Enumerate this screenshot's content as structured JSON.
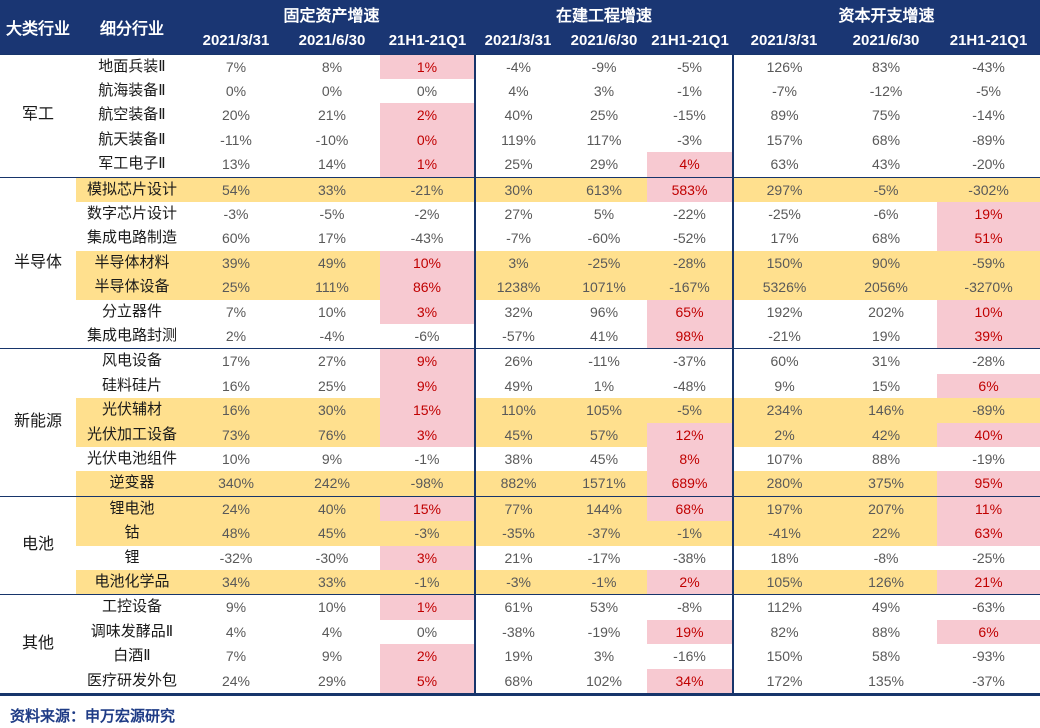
{
  "colors": {
    "header_bg": "#1A3673",
    "divider": "#17356B",
    "row_yellow": "#FFE08E",
    "cell_pink": "#F7C9D1",
    "text_red": "#C00000",
    "text_value": "#595959",
    "text_black": "#1A1A1A",
    "footer_text": "#1F3C86"
  },
  "chart_data": {
    "type": "table",
    "corner": {
      "group_col": "大类行业",
      "name_col": "细分行业"
    },
    "metric_groups": [
      {
        "label": "固定资产增速",
        "sub_columns": [
          "2021/3/31",
          "2021/6/30",
          "21H1-21Q1"
        ]
      },
      {
        "label": "在建工程增速",
        "sub_columns": [
          "2021/3/31",
          "2021/6/30",
          "21H1-21Q1"
        ]
      },
      {
        "label": "资本开支增速",
        "sub_columns": [
          "2021/3/31",
          "2021/6/30",
          "21H1-21Q1"
        ]
      }
    ],
    "row_groups": [
      {
        "name": "军工",
        "rows": [
          {
            "name": "地面兵装Ⅱ",
            "yellow": false,
            "values": [
              "7%",
              "8%",
              "1%",
              "-4%",
              "-9%",
              "-5%",
              "126%",
              "83%",
              "-43%"
            ],
            "pink_cols": [
              2
            ]
          },
          {
            "name": "航海装备Ⅱ",
            "yellow": false,
            "values": [
              "0%",
              "0%",
              "0%",
              "4%",
              "3%",
              "-1%",
              "-7%",
              "-12%",
              "-5%"
            ],
            "pink_cols": []
          },
          {
            "name": "航空装备Ⅱ",
            "yellow": false,
            "values": [
              "20%",
              "21%",
              "2%",
              "40%",
              "25%",
              "-15%",
              "89%",
              "75%",
              "-14%"
            ],
            "pink_cols": [
              2
            ]
          },
          {
            "name": "航天装备Ⅱ",
            "yellow": false,
            "values": [
              "-11%",
              "-10%",
              "0%",
              "119%",
              "117%",
              "-3%",
              "157%",
              "68%",
              "-89%"
            ],
            "pink_cols": [
              2
            ]
          },
          {
            "name": "军工电子Ⅱ",
            "yellow": false,
            "values": [
              "13%",
              "14%",
              "1%",
              "25%",
              "29%",
              "4%",
              "63%",
              "43%",
              "-20%"
            ],
            "pink_cols": [
              2,
              5
            ]
          }
        ]
      },
      {
        "name": "半导体",
        "rows": [
          {
            "name": "模拟芯片设计",
            "yellow": true,
            "values": [
              "54%",
              "33%",
              "-21%",
              "30%",
              "613%",
              "583%",
              "297%",
              "-5%",
              "-302%"
            ],
            "pink_cols": [
              5
            ]
          },
          {
            "name": "数字芯片设计",
            "yellow": false,
            "values": [
              "-3%",
              "-5%",
              "-2%",
              "27%",
              "5%",
              "-22%",
              "-25%",
              "-6%",
              "19%"
            ],
            "pink_cols": [
              8
            ]
          },
          {
            "name": "集成电路制造",
            "yellow": false,
            "values": [
              "60%",
              "17%",
              "-43%",
              "-7%",
              "-60%",
              "-52%",
              "17%",
              "68%",
              "51%"
            ],
            "pink_cols": [
              8
            ]
          },
          {
            "name": "半导体材料",
            "yellow": true,
            "values": [
              "39%",
              "49%",
              "10%",
              "3%",
              "-25%",
              "-28%",
              "150%",
              "90%",
              "-59%"
            ],
            "pink_cols": [
              2
            ]
          },
          {
            "name": "半导体设备",
            "yellow": true,
            "values": [
              "25%",
              "111%",
              "86%",
              "1238%",
              "1071%",
              "-167%",
              "5326%",
              "2056%",
              "-3270%"
            ],
            "pink_cols": [
              2
            ]
          },
          {
            "name": "分立器件",
            "yellow": false,
            "values": [
              "7%",
              "10%",
              "3%",
              "32%",
              "96%",
              "65%",
              "192%",
              "202%",
              "10%"
            ],
            "pink_cols": [
              2,
              5,
              8
            ]
          },
          {
            "name": "集成电路封测",
            "yellow": false,
            "values": [
              "2%",
              "-4%",
              "-6%",
              "-57%",
              "41%",
              "98%",
              "-21%",
              "19%",
              "39%"
            ],
            "pink_cols": [
              5,
              8
            ]
          }
        ]
      },
      {
        "name": "新能源",
        "rows": [
          {
            "name": "风电设备",
            "yellow": false,
            "values": [
              "17%",
              "27%",
              "9%",
              "26%",
              "-11%",
              "-37%",
              "60%",
              "31%",
              "-28%"
            ],
            "pink_cols": [
              2
            ]
          },
          {
            "name": "硅料硅片",
            "yellow": false,
            "values": [
              "16%",
              "25%",
              "9%",
              "49%",
              "1%",
              "-48%",
              "9%",
              "15%",
              "6%"
            ],
            "pink_cols": [
              2,
              8
            ]
          },
          {
            "name": "光伏辅材",
            "yellow": true,
            "values": [
              "16%",
              "30%",
              "15%",
              "110%",
              "105%",
              "-5%",
              "234%",
              "146%",
              "-89%"
            ],
            "pink_cols": [
              2
            ]
          },
          {
            "name": "光伏加工设备",
            "yellow": true,
            "values": [
              "73%",
              "76%",
              "3%",
              "45%",
              "57%",
              "12%",
              "2%",
              "42%",
              "40%"
            ],
            "pink_cols": [
              2,
              5,
              8
            ]
          },
          {
            "name": "光伏电池组件",
            "yellow": false,
            "values": [
              "10%",
              "9%",
              "-1%",
              "38%",
              "45%",
              "8%",
              "107%",
              "88%",
              "-19%"
            ],
            "pink_cols": [
              5
            ]
          },
          {
            "name": "逆变器",
            "yellow": true,
            "values": [
              "340%",
              "242%",
              "-98%",
              "882%",
              "1571%",
              "689%",
              "280%",
              "375%",
              "95%"
            ],
            "pink_cols": [
              5,
              8
            ]
          }
        ]
      },
      {
        "name": "电池",
        "rows": [
          {
            "name": "锂电池",
            "yellow": true,
            "values": [
              "24%",
              "40%",
              "15%",
              "77%",
              "144%",
              "68%",
              "197%",
              "207%",
              "11%"
            ],
            "pink_cols": [
              2,
              5,
              8
            ]
          },
          {
            "name": "钴",
            "yellow": true,
            "values": [
              "48%",
              "45%",
              "-3%",
              "-35%",
              "-37%",
              "-1%",
              "-41%",
              "22%",
              "63%"
            ],
            "pink_cols": [
              8
            ]
          },
          {
            "name": "锂",
            "yellow": false,
            "values": [
              "-32%",
              "-30%",
              "3%",
              "21%",
              "-17%",
              "-38%",
              "18%",
              "-8%",
              "-25%"
            ],
            "pink_cols": [
              2
            ]
          },
          {
            "name": "电池化学品",
            "yellow": true,
            "values": [
              "34%",
              "33%",
              "-1%",
              "-3%",
              "-1%",
              "2%",
              "105%",
              "126%",
              "21%"
            ],
            "pink_cols": [
              5,
              8
            ]
          }
        ]
      },
      {
        "name": "其他",
        "rows": [
          {
            "name": "工控设备",
            "yellow": false,
            "values": [
              "9%",
              "10%",
              "1%",
              "61%",
              "53%",
              "-8%",
              "112%",
              "49%",
              "-63%"
            ],
            "pink_cols": [
              2
            ]
          },
          {
            "name": "调味发酵品Ⅱ",
            "yellow": false,
            "values": [
              "4%",
              "4%",
              "0%",
              "-38%",
              "-19%",
              "19%",
              "82%",
              "88%",
              "6%"
            ],
            "pink_cols": [
              5,
              8
            ]
          },
          {
            "name": "白酒Ⅱ",
            "yellow": false,
            "values": [
              "7%",
              "9%",
              "2%",
              "19%",
              "3%",
              "-16%",
              "150%",
              "58%",
              "-93%"
            ],
            "pink_cols": [
              2
            ]
          },
          {
            "name": "医疗研发外包",
            "yellow": false,
            "values": [
              "24%",
              "29%",
              "5%",
              "68%",
              "102%",
              "34%",
              "172%",
              "135%",
              "-37%"
            ],
            "pink_cols": [
              2,
              5
            ]
          }
        ]
      }
    ]
  },
  "footer": {
    "text": "资料来源：申万宏源研究"
  }
}
